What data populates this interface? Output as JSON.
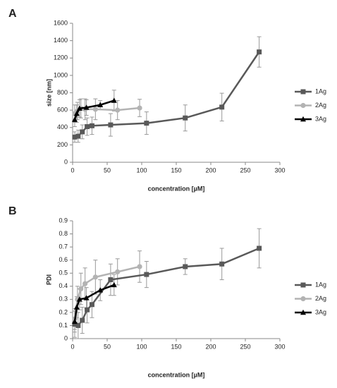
{
  "chart_data": [
    {
      "type": "line",
      "label": "A",
      "x_label": "concentration [µM]",
      "y_label": "size [nm]",
      "xlim": [
        0,
        300
      ],
      "xticks": [
        0,
        50,
        100,
        150,
        200,
        250,
        300
      ],
      "ylim": [
        0,
        1600
      ],
      "yticks": [
        0,
        200,
        400,
        600,
        800,
        1000,
        1200,
        1400,
        1600
      ],
      "grid": false,
      "legend": "right",
      "series": [
        {
          "name": "1Ag",
          "color": "#595959",
          "marker": "square",
          "x": [
            3,
            8,
            14,
            21,
            28,
            55,
            107,
            163,
            216,
            270
          ],
          "values": [
            290,
            300,
            350,
            410,
            420,
            430,
            450,
            510,
            635,
            1270
          ],
          "errors": [
            60,
            70,
            80,
            100,
            100,
            130,
            130,
            150,
            160,
            175
          ]
        },
        {
          "name": "2Ag",
          "color": "#b3b3b3",
          "marker": "circle",
          "x": [
            3,
            7,
            12,
            18,
            33,
            65,
            97
          ],
          "values": [
            560,
            590,
            620,
            610,
            610,
            600,
            625
          ],
          "errors": [
            100,
            100,
            110,
            120,
            120,
            110,
            100
          ]
        },
        {
          "name": "3Ag",
          "color": "#000000",
          "marker": "triangle",
          "x": [
            3,
            6,
            10,
            20,
            40,
            60
          ],
          "values": [
            490,
            560,
            620,
            630,
            660,
            710
          ],
          "errors": [
            80,
            100,
            100,
            90,
            50,
            120
          ]
        }
      ]
    },
    {
      "type": "line",
      "label": "B",
      "x_label": "concentration [µM]",
      "y_label": "PDI",
      "xlim": [
        0,
        300
      ],
      "xticks": [
        0,
        50,
        100,
        150,
        200,
        250,
        300
      ],
      "ylim": [
        0,
        0.9
      ],
      "yticks": [
        0,
        0.1,
        0.2,
        0.3,
        0.4,
        0.5,
        0.6,
        0.7,
        0.8,
        0.9
      ],
      "grid": false,
      "legend": "right",
      "series": [
        {
          "name": "1Ag",
          "color": "#595959",
          "marker": "square",
          "x": [
            3,
            8,
            14,
            21,
            28,
            55,
            107,
            163,
            216,
            270
          ],
          "values": [
            0.11,
            0.1,
            0.14,
            0.22,
            0.26,
            0.45,
            0.49,
            0.55,
            0.57,
            0.69
          ],
          "errors": [
            0.1,
            0.1,
            0.1,
            0.1,
            0.1,
            0.12,
            0.1,
            0.06,
            0.12,
            0.15
          ]
        },
        {
          "name": "2Ag",
          "color": "#b3b3b3",
          "marker": "circle",
          "x": [
            3,
            7,
            12,
            18,
            33,
            65,
            97
          ],
          "values": [
            0.15,
            0.3,
            0.38,
            0.42,
            0.47,
            0.51,
            0.55
          ],
          "errors": [
            0.08,
            0.1,
            0.12,
            0.12,
            0.13,
            0.1,
            0.12
          ]
        },
        {
          "name": "3Ag",
          "color": "#000000",
          "marker": "triangle",
          "x": [
            3,
            6,
            10,
            20,
            40,
            60
          ],
          "values": [
            0.13,
            0.24,
            0.3,
            0.31,
            0.37,
            0.41
          ],
          "errors": [
            0.08,
            0.08,
            0.08,
            0.08,
            0.08,
            0.08
          ]
        }
      ]
    }
  ]
}
